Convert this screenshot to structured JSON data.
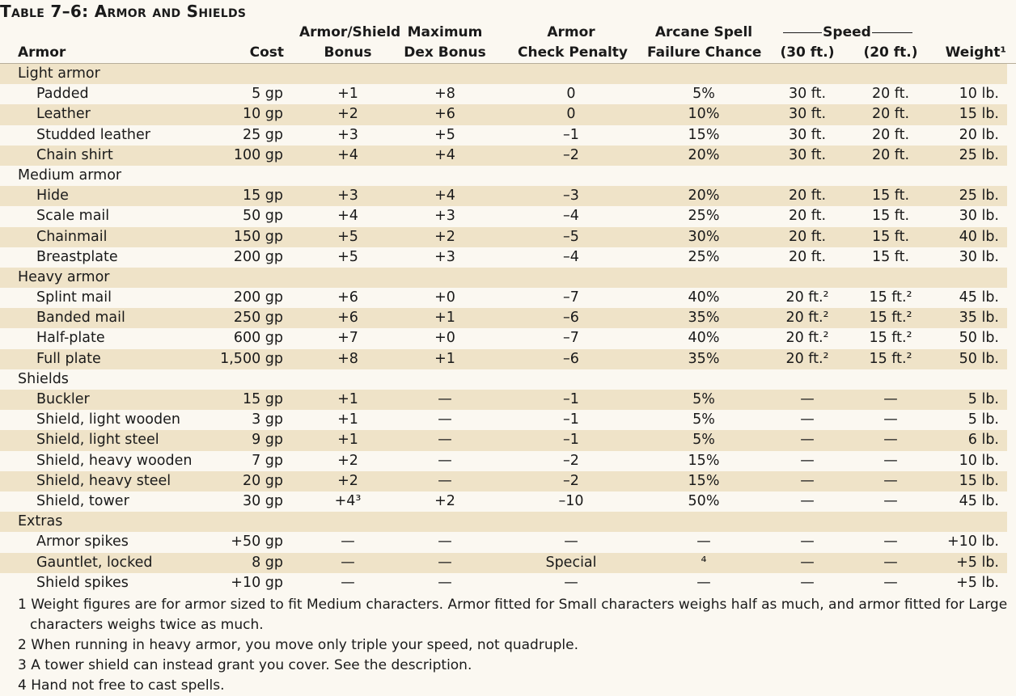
{
  "title": "Table 7–6: Armor and Shields",
  "headers": {
    "armor": "Armor",
    "cost": "Cost",
    "bonus_1": "Armor/Shield",
    "bonus_2": "Bonus",
    "dex_1": "Maximum",
    "dex_2": "Dex Bonus",
    "acp_1": "Armor",
    "acp_2": "Check Penalty",
    "asf_1": "Arcane Spell",
    "asf_2": "Failure Chance",
    "speed": "Speed",
    "speed30": "(30 ft.)",
    "speed20": "(20 ft.)",
    "weight": "Weight¹"
  },
  "rows": [
    {
      "type": "section",
      "name": "Light armor"
    },
    {
      "type": "item",
      "name": "Padded",
      "cost": "5 gp",
      "bonus": "+1",
      "dex": "+8",
      "acp": "0",
      "asf": "5%",
      "s30": "30 ft.",
      "s20": "20 ft.",
      "wt": "10 lb."
    },
    {
      "type": "item",
      "name": "Leather",
      "cost": "10 gp",
      "bonus": "+2",
      "dex": "+6",
      "acp": "0",
      "asf": "10%",
      "s30": "30 ft.",
      "s20": "20 ft.",
      "wt": "15 lb."
    },
    {
      "type": "item",
      "name": "Studded leather",
      "cost": "25 gp",
      "bonus": "+3",
      "dex": "+5",
      "acp": "–1",
      "asf": "15%",
      "s30": "30 ft.",
      "s20": "20 ft.",
      "wt": "20 lb."
    },
    {
      "type": "item",
      "name": "Chain shirt",
      "cost": "100 gp",
      "bonus": "+4",
      "dex": "+4",
      "acp": "–2",
      "asf": "20%",
      "s30": "30 ft.",
      "s20": "20 ft.",
      "wt": "25 lb."
    },
    {
      "type": "section",
      "name": "Medium armor"
    },
    {
      "type": "item",
      "name": "Hide",
      "cost": "15 gp",
      "bonus": "+3",
      "dex": "+4",
      "acp": "–3",
      "asf": "20%",
      "s30": "20 ft.",
      "s20": "15 ft.",
      "wt": "25 lb."
    },
    {
      "type": "item",
      "name": "Scale mail",
      "cost": "50 gp",
      "bonus": "+4",
      "dex": "+3",
      "acp": "–4",
      "asf": "25%",
      "s30": "20 ft.",
      "s20": "15 ft.",
      "wt": "30 lb."
    },
    {
      "type": "item",
      "name": "Chainmail",
      "cost": "150 gp",
      "bonus": "+5",
      "dex": "+2",
      "acp": "–5",
      "asf": "30%",
      "s30": "20 ft.",
      "s20": "15 ft.",
      "wt": "40 lb."
    },
    {
      "type": "item",
      "name": "Breastplate",
      "cost": "200 gp",
      "bonus": "+5",
      "dex": "+3",
      "acp": "–4",
      "asf": "25%",
      "s30": "20 ft.",
      "s20": "15 ft.",
      "wt": "30 lb."
    },
    {
      "type": "section",
      "name": "Heavy armor"
    },
    {
      "type": "item",
      "name": "Splint mail",
      "cost": "200 gp",
      "bonus": "+6",
      "dex": "+0",
      "acp": "–7",
      "asf": "40%",
      "s30": "20 ft.²",
      "s20": "15 ft.²",
      "wt": "45 lb."
    },
    {
      "type": "item",
      "name": "Banded mail",
      "cost": "250 gp",
      "bonus": "+6",
      "dex": "+1",
      "acp": "–6",
      "asf": "35%",
      "s30": "20 ft.²",
      "s20": "15 ft.²",
      "wt": "35 lb."
    },
    {
      "type": "item",
      "name": "Half-plate",
      "cost": "600 gp",
      "bonus": "+7",
      "dex": "+0",
      "acp": "–7",
      "asf": "40%",
      "s30": "20 ft.²",
      "s20": "15 ft.²",
      "wt": "50 lb."
    },
    {
      "type": "item",
      "name": "Full plate",
      "cost": "1,500 gp",
      "bonus": "+8",
      "dex": "+1",
      "acp": "–6",
      "asf": "35%",
      "s30": "20 ft.²",
      "s20": "15 ft.²",
      "wt": "50 lb."
    },
    {
      "type": "section",
      "name": "Shields"
    },
    {
      "type": "item",
      "name": "Buckler",
      "cost": "15 gp",
      "bonus": "+1",
      "dex": "—",
      "acp": "–1",
      "asf": "5%",
      "s30": "—",
      "s20": "—",
      "wt": "5 lb."
    },
    {
      "type": "item",
      "name": "Shield, light wooden",
      "cost": "3 gp",
      "bonus": "+1",
      "dex": "—",
      "acp": "–1",
      "asf": "5%",
      "s30": "—",
      "s20": "—",
      "wt": "5 lb."
    },
    {
      "type": "item",
      "name": "Shield, light steel",
      "cost": "9 gp",
      "bonus": "+1",
      "dex": "—",
      "acp": "–1",
      "asf": "5%",
      "s30": "—",
      "s20": "—",
      "wt": "6 lb."
    },
    {
      "type": "item",
      "name": "Shield, heavy wooden",
      "cost": "7 gp",
      "bonus": "+2",
      "dex": "—",
      "acp": "–2",
      "asf": "15%",
      "s30": "—",
      "s20": "—",
      "wt": "10 lb."
    },
    {
      "type": "item",
      "name": "Shield, heavy steel",
      "cost": "20 gp",
      "bonus": "+2",
      "dex": "—",
      "acp": "–2",
      "asf": "15%",
      "s30": "—",
      "s20": "—",
      "wt": "15 lb."
    },
    {
      "type": "item",
      "name": "Shield, tower",
      "cost": "30 gp",
      "bonus": "+4³",
      "dex": "+2",
      "acp": "–10",
      "asf": "50%",
      "s30": "—",
      "s20": "—",
      "wt": "45 lb."
    },
    {
      "type": "section",
      "name": "Extras"
    },
    {
      "type": "item",
      "name": "Armor spikes",
      "cost": "+50 gp",
      "bonus": "—",
      "dex": "—",
      "acp": "—",
      "asf": "—",
      "s30": "—",
      "s20": "—",
      "wt": "+10 lb."
    },
    {
      "type": "item",
      "name": "Gauntlet, locked",
      "cost": "8 gp",
      "bonus": "—",
      "dex": "—",
      "acp": "Special",
      "asf": "⁴",
      "s30": "—",
      "s20": "—",
      "wt": "+5 lb."
    },
    {
      "type": "item",
      "name": "Shield spikes",
      "cost": "+10 gp",
      "bonus": "—",
      "dex": "—",
      "acp": "—",
      "asf": "—",
      "s30": "—",
      "s20": "—",
      "wt": "+5 lb."
    }
  ],
  "notes": [
    {
      "text": "1 Weight figures are for armor sized to fit Medium characters. Armor fitted for Small characters weighs half as much, and armor fitted for Large",
      "cont": false
    },
    {
      "text": "characters weighs twice as much.",
      "cont": true
    },
    {
      "text": "2 When running in heavy armor, you move only triple your speed, not quadruple.",
      "cont": false
    },
    {
      "text": "3 A tower shield can instead grant you cover. See the description.",
      "cont": false
    },
    {
      "text": "4 Hand not free to cast spells.",
      "cont": false
    }
  ]
}
